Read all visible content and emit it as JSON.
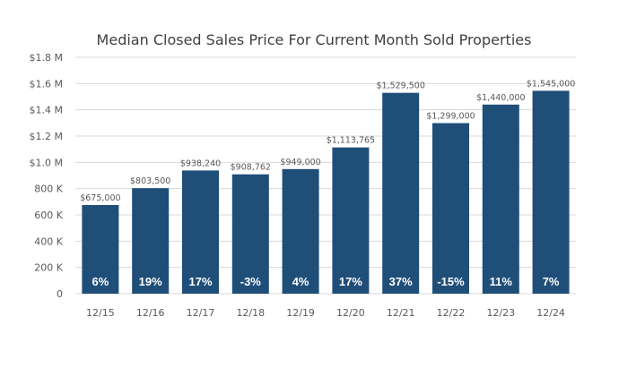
{
  "chart_data": {
    "type": "bar",
    "title": "Median Closed Sales Price For Current Month Sold Properties",
    "xlabel": "",
    "ylabel": "",
    "ylim": [
      0,
      1800000
    ],
    "yticks": [
      {
        "value": 0,
        "label": "0"
      },
      {
        "value": 200000,
        "label": "200 K"
      },
      {
        "value": 400000,
        "label": "400 K"
      },
      {
        "value": 600000,
        "label": "600 K"
      },
      {
        "value": 800000,
        "label": "800 K"
      },
      {
        "value": 1000000,
        "label": "$1.0 M"
      },
      {
        "value": 1200000,
        "label": "$1.2 M"
      },
      {
        "value": 1400000,
        "label": "$1.4 M"
      },
      {
        "value": 1600000,
        "label": "$1.6 M"
      },
      {
        "value": 1800000,
        "label": "$1.8 M"
      }
    ],
    "grid": true,
    "categories": [
      "12/15",
      "12/16",
      "12/17",
      "12/18",
      "12/19",
      "12/20",
      "12/21",
      "12/22",
      "12/23",
      "12/24"
    ],
    "values": [
      675000,
      803500,
      938240,
      908762,
      949000,
      1113765,
      1529500,
      1299000,
      1440000,
      1545000
    ],
    "value_labels": [
      "$675,000",
      "$803,500",
      "$938,240",
      "$908,762",
      "$949,000",
      "$1,113,765",
      "$1,529,500",
      "$1,299,000",
      "$1,440,000",
      "$1,545,000"
    ],
    "pct_change_labels": [
      "6%",
      "19%",
      "17%",
      "-3%",
      "4%",
      "17%",
      "37%",
      "-15%",
      "11%",
      "7%"
    ],
    "bar_color": "#1f4e79",
    "grid_color": "#d9d9d9",
    "text_color": "#595959"
  }
}
